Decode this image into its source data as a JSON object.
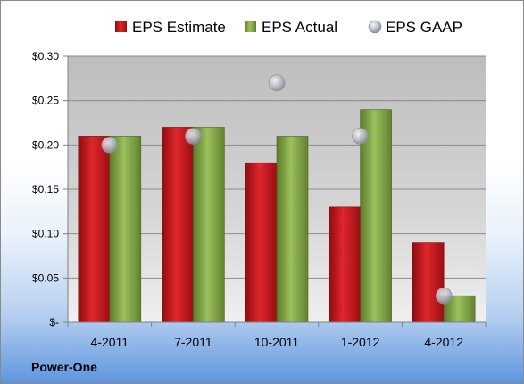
{
  "company": "Power-One",
  "colors": {
    "estimate": "#c8141a",
    "actual": "#7fa345",
    "gaap": "#b8bcc2",
    "plot_bg": "#c9c9c9"
  },
  "chart_data": {
    "type": "bar",
    "categories": [
      "4-2011",
      "7-2011",
      "10-2011",
      "1-2012",
      "4-2012"
    ],
    "series": [
      {
        "name": "EPS Estimate",
        "type": "bar",
        "values": [
          0.21,
          0.22,
          0.18,
          0.13,
          0.09
        ]
      },
      {
        "name": "EPS Actual",
        "type": "bar",
        "values": [
          0.21,
          0.22,
          0.21,
          0.24,
          0.03
        ]
      },
      {
        "name": "EPS GAAP",
        "type": "scatter",
        "values": [
          0.2,
          0.21,
          0.27,
          0.21,
          0.03
        ]
      }
    ],
    "yticks": [
      0,
      0.05,
      0.1,
      0.15,
      0.2,
      0.25,
      0.3
    ],
    "ytick_labels": [
      "$-",
      "$0.05",
      "$0.10",
      "$0.15",
      "$0.20",
      "$0.25",
      "$0.30"
    ],
    "ylim": [
      0,
      0.3
    ],
    "grid": true,
    "legend_position": "top"
  }
}
